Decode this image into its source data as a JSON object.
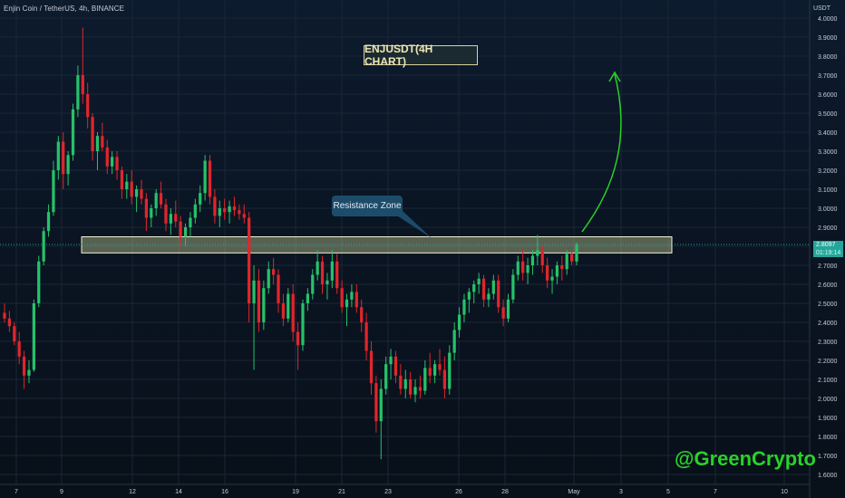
{
  "header": {
    "symbol_line": "Enjin Coin / TetherUS, 4h, BINANCE",
    "currency": "USDT"
  },
  "annotations": {
    "title": "ENJUSDT(4H CHART)",
    "callout": "Resistance Zone",
    "watermark": "@GreenCrypto"
  },
  "last_price": {
    "value": "2.8097",
    "countdown": "01:19:14"
  },
  "colors": {
    "up": "#26c26a",
    "down": "#e0262b",
    "zone_fill": "#e9f0a8",
    "zone_border": "#f2f2d0",
    "arrow": "#2bd12b",
    "grid": "#1b2636",
    "axis_text": "#c8ccd6"
  },
  "chart_data": {
    "type": "candlestick",
    "ylim": [
      1.6,
      4.0
    ],
    "y_ticks": [
      "4.0000",
      "3.9000",
      "3.8000",
      "3.7000",
      "3.6000",
      "3.5000",
      "3.4000",
      "3.3000",
      "3.2000",
      "3.1000",
      "3.0000",
      "2.9000",
      "2.8000",
      "2.7000",
      "2.6000",
      "2.5000",
      "2.4000",
      "2.3000",
      "2.2000",
      "2.1000",
      "2.0000",
      "1.9000",
      "1.8000",
      "1.7000",
      "1.6000"
    ],
    "x_ticks": [
      "7",
      "9",
      "12",
      "14",
      "16",
      "19",
      "21",
      "23",
      "26",
      "28",
      "May",
      "3",
      "5",
      "7",
      "10"
    ],
    "resistance_zone": [
      2.765,
      2.85
    ],
    "last_price": 2.8097,
    "target_arrow": "projected move up to about 3.7",
    "candles": [
      [
        2.45,
        2.5,
        2.4,
        2.42
      ],
      [
        2.42,
        2.46,
        2.35,
        2.38
      ],
      [
        2.38,
        2.4,
        2.28,
        2.3
      ],
      [
        2.3,
        2.35,
        2.18,
        2.22
      ],
      [
        2.22,
        2.25,
        2.05,
        2.12
      ],
      [
        2.12,
        2.2,
        2.08,
        2.15
      ],
      [
        2.15,
        2.52,
        2.14,
        2.5
      ],
      [
        2.5,
        2.75,
        2.48,
        2.72
      ],
      [
        2.72,
        2.9,
        2.7,
        2.88
      ],
      [
        2.88,
        3.02,
        2.85,
        2.98
      ],
      [
        2.98,
        3.25,
        2.96,
        3.2
      ],
      [
        3.2,
        3.38,
        3.15,
        3.35
      ],
      [
        3.35,
        3.4,
        3.1,
        3.18
      ],
      [
        3.18,
        3.3,
        3.12,
        3.28
      ],
      [
        3.28,
        3.55,
        3.25,
        3.52
      ],
      [
        3.52,
        3.75,
        3.48,
        3.7
      ],
      [
        3.7,
        3.95,
        3.55,
        3.6
      ],
      [
        3.6,
        3.66,
        3.42,
        3.48
      ],
      [
        3.48,
        3.5,
        3.25,
        3.3
      ],
      [
        3.3,
        3.4,
        3.2,
        3.38
      ],
      [
        3.38,
        3.45,
        3.3,
        3.32
      ],
      [
        3.32,
        3.36,
        3.18,
        3.22
      ],
      [
        3.22,
        3.3,
        3.18,
        3.27
      ],
      [
        3.27,
        3.3,
        3.15,
        3.2
      ],
      [
        3.2,
        3.22,
        3.05,
        3.1
      ],
      [
        3.1,
        3.18,
        3.05,
        3.14
      ],
      [
        3.14,
        3.2,
        3.02,
        3.06
      ],
      [
        3.06,
        3.12,
        2.98,
        3.1
      ],
      [
        3.1,
        3.15,
        3.02,
        3.05
      ],
      [
        3.05,
        3.08,
        2.88,
        2.95
      ],
      [
        2.95,
        3.02,
        2.9,
        3.0
      ],
      [
        3.0,
        3.1,
        2.96,
        3.08
      ],
      [
        3.08,
        3.14,
        3.0,
        3.02
      ],
      [
        3.02,
        3.05,
        2.88,
        2.92
      ],
      [
        2.92,
        3.0,
        2.86,
        2.97
      ],
      [
        2.97,
        3.04,
        2.9,
        2.93
      ],
      [
        2.93,
        2.96,
        2.8,
        2.85
      ],
      [
        2.85,
        2.92,
        2.8,
        2.9
      ],
      [
        2.9,
        2.98,
        2.85,
        2.95
      ],
      [
        2.95,
        3.05,
        2.92,
        3.02
      ],
      [
        3.02,
        3.12,
        2.98,
        3.08
      ],
      [
        3.08,
        3.28,
        3.04,
        3.25
      ],
      [
        3.25,
        3.28,
        3.02,
        3.06
      ],
      [
        3.06,
        3.1,
        2.92,
        2.96
      ],
      [
        2.96,
        3.04,
        2.9,
        3.0
      ],
      [
        3.0,
        3.05,
        2.94,
        2.98
      ],
      [
        2.98,
        3.04,
        2.92,
        3.01
      ],
      [
        3.01,
        3.06,
        2.96,
        2.99
      ],
      [
        2.99,
        3.02,
        2.94,
        2.97
      ],
      [
        2.97,
        3.02,
        2.92,
        2.95
      ],
      [
        2.95,
        2.98,
        2.4,
        2.5
      ],
      [
        2.5,
        2.7,
        2.15,
        2.62
      ],
      [
        2.62,
        2.68,
        2.35,
        2.4
      ],
      [
        2.4,
        2.62,
        2.36,
        2.58
      ],
      [
        2.58,
        2.72,
        2.55,
        2.68
      ],
      [
        2.68,
        2.74,
        2.6,
        2.65
      ],
      [
        2.65,
        2.68,
        2.45,
        2.5
      ],
      [
        2.5,
        2.55,
        2.38,
        2.42
      ],
      [
        2.42,
        2.58,
        2.4,
        2.55
      ],
      [
        2.55,
        2.6,
        2.3,
        2.35
      ],
      [
        2.35,
        2.4,
        2.15,
        2.28
      ],
      [
        2.28,
        2.52,
        2.25,
        2.5
      ],
      [
        2.5,
        2.58,
        2.46,
        2.55
      ],
      [
        2.55,
        2.68,
        2.52,
        2.65
      ],
      [
        2.65,
        2.78,
        2.62,
        2.72
      ],
      [
        2.72,
        2.75,
        2.55,
        2.6
      ],
      [
        2.6,
        2.66,
        2.52,
        2.62
      ],
      [
        2.62,
        2.78,
        2.58,
        2.72
      ],
      [
        2.72,
        2.76,
        2.55,
        2.58
      ],
      [
        2.58,
        2.62,
        2.45,
        2.48
      ],
      [
        2.48,
        2.55,
        2.38,
        2.52
      ],
      [
        2.52,
        2.6,
        2.48,
        2.56
      ],
      [
        2.56,
        2.6,
        2.45,
        2.48
      ],
      [
        2.48,
        2.52,
        2.35,
        2.4
      ],
      [
        2.4,
        2.45,
        2.2,
        2.25
      ],
      [
        2.25,
        2.3,
        2.02,
        2.08
      ],
      [
        2.08,
        2.12,
        1.82,
        1.88
      ],
      [
        1.88,
        2.1,
        1.68,
        2.05
      ],
      [
        2.05,
        2.22,
        2.02,
        2.18
      ],
      [
        2.18,
        2.26,
        2.1,
        2.22
      ],
      [
        2.22,
        2.25,
        2.08,
        2.12
      ],
      [
        2.12,
        2.18,
        2.02,
        2.05
      ],
      [
        2.05,
        2.15,
        2.0,
        2.1
      ],
      [
        2.1,
        2.14,
        2.0,
        2.02
      ],
      [
        2.02,
        2.1,
        1.98,
        2.06
      ],
      [
        2.06,
        2.12,
        2.0,
        2.04
      ],
      [
        2.04,
        2.2,
        2.02,
        2.16
      ],
      [
        2.16,
        2.24,
        2.08,
        2.12
      ],
      [
        2.12,
        2.2,
        2.08,
        2.18
      ],
      [
        2.18,
        2.26,
        2.12,
        2.15
      ],
      [
        2.15,
        2.22,
        2.0,
        2.05
      ],
      [
        2.05,
        2.28,
        2.02,
        2.24
      ],
      [
        2.24,
        2.4,
        2.2,
        2.36
      ],
      [
        2.36,
        2.48,
        2.32,
        2.44
      ],
      [
        2.44,
        2.55,
        2.4,
        2.52
      ],
      [
        2.52,
        2.58,
        2.45,
        2.56
      ],
      [
        2.56,
        2.62,
        2.5,
        2.6
      ],
      [
        2.6,
        2.66,
        2.55,
        2.63
      ],
      [
        2.63,
        2.65,
        2.48,
        2.52
      ],
      [
        2.52,
        2.58,
        2.48,
        2.55
      ],
      [
        2.55,
        2.65,
        2.52,
        2.62
      ],
      [
        2.62,
        2.65,
        2.45,
        2.48
      ],
      [
        2.48,
        2.52,
        2.38,
        2.42
      ],
      [
        2.42,
        2.55,
        2.4,
        2.52
      ],
      [
        2.52,
        2.68,
        2.5,
        2.65
      ],
      [
        2.65,
        2.75,
        2.62,
        2.72
      ],
      [
        2.72,
        2.78,
        2.62,
        2.66
      ],
      [
        2.66,
        2.74,
        2.6,
        2.7
      ],
      [
        2.7,
        2.78,
        2.65,
        2.75
      ],
      [
        2.75,
        2.86,
        2.7,
        2.78
      ],
      [
        2.78,
        2.8,
        2.66,
        2.7
      ],
      [
        2.7,
        2.74,
        2.58,
        2.62
      ],
      [
        2.62,
        2.68,
        2.55,
        2.64
      ],
      [
        2.64,
        2.72,
        2.6,
        2.7
      ],
      [
        2.7,
        2.75,
        2.62,
        2.68
      ],
      [
        2.68,
        2.78,
        2.65,
        2.76
      ],
      [
        2.76,
        2.8,
        2.7,
        2.72
      ],
      [
        2.72,
        2.82,
        2.7,
        2.81
      ]
    ]
  }
}
